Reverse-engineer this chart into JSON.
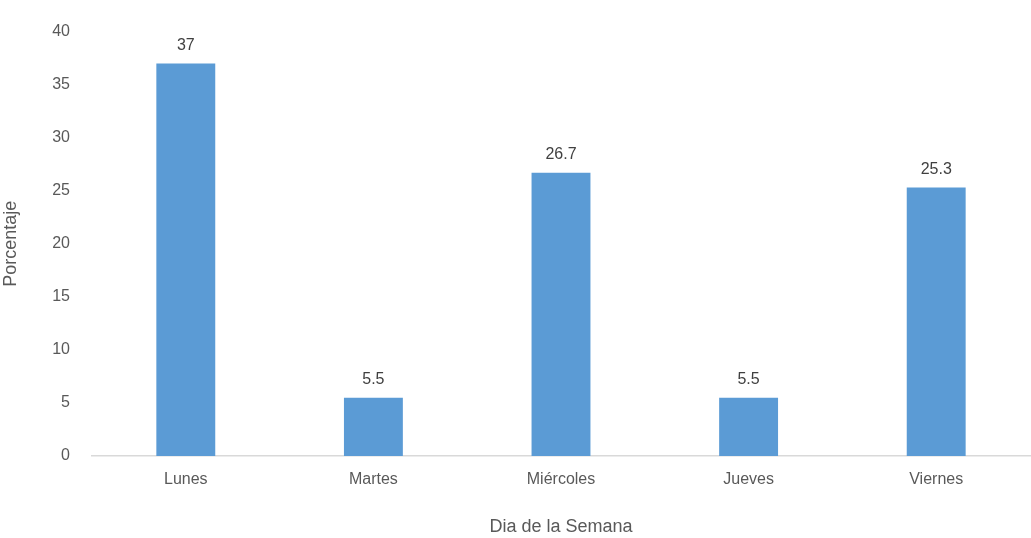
{
  "chart_data": {
    "type": "bar",
    "xlabel": "Dia de la Semana",
    "ylabel": "Porcentaje",
    "categories": [
      "Lunes",
      "Martes",
      "Miércoles",
      "Jueves",
      "Viernes"
    ],
    "values": [
      37,
      5.5,
      26.7,
      5.5,
      25.3
    ],
    "color": "#5b9bd5",
    "ylim": [
      0,
      40
    ],
    "yticks": [
      0,
      5,
      10,
      15,
      20,
      25,
      30,
      35,
      40
    ],
    "data_labels": true,
    "grid": false,
    "legend": false
  }
}
